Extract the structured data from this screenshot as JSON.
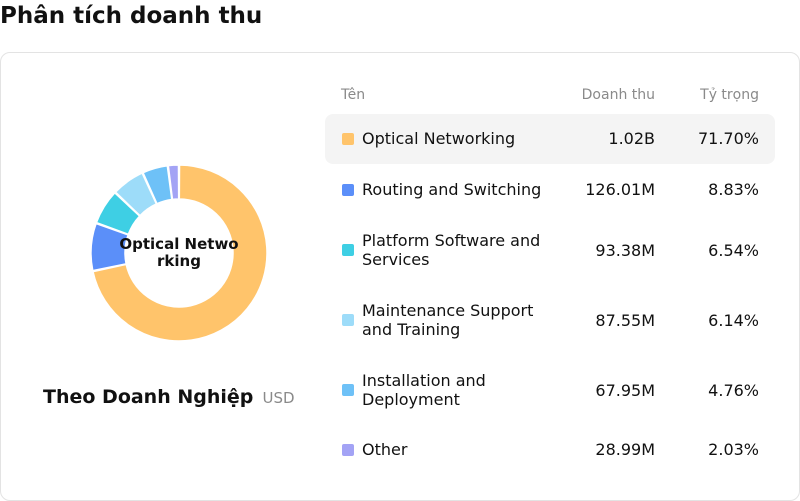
{
  "page": {
    "title": "Phân tích doanh thu"
  },
  "breakdown": {
    "section_name": "Theo Doanh Nghiệp",
    "currency": "USD",
    "center_label": "Optical Networking"
  },
  "table": {
    "headers": {
      "name": "Tên",
      "revenue": "Doanh thu",
      "share": "Tỷ trọng"
    },
    "rows": [
      {
        "name": "Optical Networking",
        "revenue": "1.02B",
        "share": "71.70%",
        "color": "#FFC46B",
        "highlighted": true
      },
      {
        "name": "Routing and Switching",
        "revenue": "126.01M",
        "share": "8.83%",
        "color": "#5B8FF9",
        "highlighted": false
      },
      {
        "name": "Platform Software and Services",
        "revenue": "93.38M",
        "share": "6.54%",
        "color": "#3ECFE4",
        "highlighted": false
      },
      {
        "name": "Maintenance Support and Training",
        "revenue": "87.55M",
        "share": "6.14%",
        "color": "#9DDCF9",
        "highlighted": false
      },
      {
        "name": "Installation and Deployment",
        "revenue": "67.95M",
        "share": "4.76%",
        "color": "#6EC1F7",
        "highlighted": false
      },
      {
        "name": "Other",
        "revenue": "28.99M",
        "share": "2.03%",
        "color": "#A3A3F5",
        "highlighted": false
      }
    ]
  },
  "chart_data": {
    "type": "pie",
    "categories": [
      "Optical Networking",
      "Routing and Switching",
      "Platform Software and Services",
      "Maintenance Support and Training",
      "Installation and Deployment",
      "Other"
    ],
    "values": [
      71.7,
      8.83,
      6.54,
      6.14,
      4.76,
      2.03
    ],
    "colors": [
      "#FFC46B",
      "#5B8FF9",
      "#3ECFE4",
      "#9DDCF9",
      "#6EC1F7",
      "#A3A3F5"
    ],
    "style": "donut"
  }
}
